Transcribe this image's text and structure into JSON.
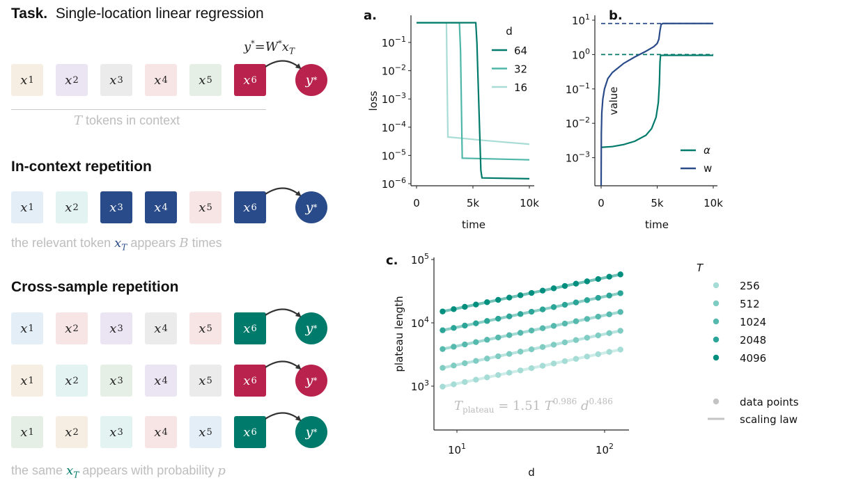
{
  "diagram": {
    "task": {
      "label": "Task.",
      "title": "Single-location linear regression",
      "formula": {
        "y": "y",
        "star": "*",
        "eq": "=",
        "W": "W",
        "x": "x",
        "sub": "T"
      }
    },
    "context_caption": {
      "sym": "T",
      "text": "tokens in context"
    },
    "in_context": {
      "title": "In-context repetition",
      "caption": {
        "pre": "the relevant token",
        "sym": "x",
        "sub": "T",
        "mid": "appears",
        "sym2": "B",
        "post": "times"
      }
    },
    "cross_sample": {
      "title": "Cross-sample repetition",
      "caption": {
        "pre": "the same",
        "sym": "x",
        "sub": "T",
        "post": "appears with probability",
        "sym2": "p"
      }
    },
    "target_label": {
      "sym": "y",
      "sup": "*"
    },
    "colors": {
      "red": "#b8224c",
      "blue": "#2a4b8a",
      "teal": "#007a6a"
    },
    "rows": [
      {
        "group": "task",
        "tokens": [
          {
            "sub": "1",
            "color": "#f6eee2"
          },
          {
            "sub": "2",
            "color": "#ebe5f3"
          },
          {
            "sub": "3",
            "color": "#ebebeb"
          },
          {
            "sub": "4",
            "color": "#f7e4e4"
          },
          {
            "sub": "5",
            "color": "#e6efe5"
          },
          {
            "sub": "6",
            "color": "#b8224c",
            "dark": true
          }
        ],
        "target_color": "#b8224c"
      },
      {
        "group": "in_context",
        "tokens": [
          {
            "sub": "1",
            "color": "#e4eef7"
          },
          {
            "sub": "2",
            "color": "#e3f3f1"
          },
          {
            "sub": "3",
            "color": "#2a4b8a",
            "dark": true
          },
          {
            "sub": "4",
            "color": "#2a4b8a",
            "dark": true
          },
          {
            "sub": "5",
            "color": "#f7e4e4"
          },
          {
            "sub": "6",
            "color": "#2a4b8a",
            "dark": true
          }
        ],
        "target_color": "#2a4b8a"
      },
      {
        "group": "cross_sample",
        "tokens": [
          {
            "sub": "1",
            "color": "#e4eef7"
          },
          {
            "sub": "2",
            "color": "#f7e4e4"
          },
          {
            "sub": "3",
            "color": "#ebe5f3"
          },
          {
            "sub": "4",
            "color": "#ebebeb"
          },
          {
            "sub": "5",
            "color": "#f7e4e4"
          },
          {
            "sub": "6",
            "color": "#007a6a",
            "dark": true
          }
        ],
        "target_color": "#007a6a"
      },
      {
        "group": "cross_sample",
        "tokens": [
          {
            "sub": "1",
            "color": "#f6eee2"
          },
          {
            "sub": "2",
            "color": "#e3f3f1"
          },
          {
            "sub": "3",
            "color": "#e6efe5"
          },
          {
            "sub": "4",
            "color": "#ebe5f3"
          },
          {
            "sub": "5",
            "color": "#ebebeb"
          },
          {
            "sub": "6",
            "color": "#b8224c",
            "dark": true
          }
        ],
        "target_color": "#b8224c"
      },
      {
        "group": "cross_sample",
        "tokens": [
          {
            "sub": "1",
            "color": "#e6efe5"
          },
          {
            "sub": "2",
            "color": "#f6eee2"
          },
          {
            "sub": "3",
            "color": "#e3f3f1"
          },
          {
            "sub": "4",
            "color": "#f7e4e4"
          },
          {
            "sub": "5",
            "color": "#e4eef7"
          },
          {
            "sub": "6",
            "color": "#007a6a",
            "dark": true
          }
        ],
        "target_color": "#007a6a"
      }
    ]
  },
  "chart_data": [
    {
      "panel": "a.",
      "type": "line",
      "xlabel": "time",
      "ylabel": "loss",
      "yscale": "log",
      "xlim": [
        -500,
        10450
      ],
      "ylim": [
        8.5e-07,
        0.91
      ],
      "xticks": [
        {
          "v": 0,
          "label": "0"
        },
        {
          "v": 5000,
          "label": "5k"
        },
        {
          "v": 10000,
          "label": "10k"
        }
      ],
      "yticks": [
        {
          "v": 0.1,
          "base": "10",
          "exp": "−1"
        },
        {
          "v": 0.01,
          "base": "10",
          "exp": "−2"
        },
        {
          "v": 0.001,
          "base": "10",
          "exp": "−3"
        },
        {
          "v": 0.0001,
          "base": "10",
          "exp": "−4"
        },
        {
          "v": 1e-05,
          "base": "10",
          "exp": "−5"
        },
        {
          "v": 1e-06,
          "base": "10",
          "exp": "−6"
        }
      ],
      "legend": {
        "title": "d",
        "placement": "upper-right"
      },
      "series": [
        {
          "name": "64",
          "color": "#007a6a",
          "points": [
            [
              0,
              0.5
            ],
            [
              5250,
              0.5
            ],
            [
              5350,
              0.1
            ],
            [
              5700,
              3e-06
            ],
            [
              5800,
              1.6e-06
            ],
            [
              10000,
              1.5e-06
            ]
          ]
        },
        {
          "name": "32",
          "color": "#4db6a8",
          "points": [
            [
              0,
              0.5
            ],
            [
              3800,
              0.5
            ],
            [
              3900,
              0.05
            ],
            [
              4050,
              8e-06
            ],
            [
              10000,
              7e-06
            ]
          ]
        },
        {
          "name": "16",
          "color": "#a8dcd5",
          "points": [
            [
              0,
              0.5
            ],
            [
              2650,
              0.5
            ],
            [
              2700,
              0.01
            ],
            [
              2780,
              4.5e-05
            ],
            [
              6000,
              3.4e-05
            ],
            [
              10000,
              2.5e-05
            ]
          ]
        }
      ]
    },
    {
      "panel": "b.",
      "type": "line",
      "xlabel": "time",
      "ylabel": "value",
      "yscale": "log",
      "xlim": [
        -560,
        10400
      ],
      "ylim": [
        0.00015,
        14
      ],
      "xticks": [
        {
          "v": 0,
          "label": "0"
        },
        {
          "v": 5000,
          "label": "5k"
        },
        {
          "v": 10000,
          "label": "10k"
        }
      ],
      "yticks": [
        {
          "v": 10,
          "base": "10",
          "exp": "1"
        },
        {
          "v": 1,
          "base": "10",
          "exp": "0"
        },
        {
          "v": 0.1,
          "base": "10",
          "exp": "−1"
        },
        {
          "v": 0.01,
          "base": "10",
          "exp": "−2"
        },
        {
          "v": 0.001,
          "base": "10",
          "exp": "−3"
        }
      ],
      "legend": {
        "placement": "lower-right"
      },
      "series": [
        {
          "name": "α",
          "color": "#007a6a",
          "target": 1,
          "points": [
            [
              0,
              0.002
            ],
            [
              1000,
              0.0021
            ],
            [
              2000,
              0.0024
            ],
            [
              3000,
              0.003
            ],
            [
              4000,
              0.0045
            ],
            [
              4500,
              0.007
            ],
            [
              4900,
              0.015
            ],
            [
              5100,
              0.04
            ],
            [
              5200,
              0.15
            ],
            [
              5250,
              0.6
            ],
            [
              5300,
              0.95
            ],
            [
              10000,
              0.95
            ]
          ]
        },
        {
          "name": "w",
          "color": "#2a4b8a",
          "target": 8,
          "points": [
            [
              0,
              0.00015
            ],
            [
              20,
              0.005
            ],
            [
              60,
              0.02
            ],
            [
              150,
              0.05
            ],
            [
              300,
              0.1
            ],
            [
              600,
              0.2
            ],
            [
              1000,
              0.3
            ],
            [
              2000,
              0.55
            ],
            [
              3000,
              0.85
            ],
            [
              4000,
              1.25
            ],
            [
              4700,
              1.7
            ],
            [
              5000,
              2.1
            ],
            [
              5150,
              2.8
            ],
            [
              5250,
              5
            ],
            [
              5350,
              7.5
            ],
            [
              5500,
              8
            ],
            [
              10000,
              8
            ]
          ]
        }
      ]
    },
    {
      "panel": "c.",
      "type": "scatter",
      "xlabel": "d",
      "ylabel": "plateau length",
      "xscale": "log",
      "yscale": "log",
      "xlim": [
        6.98,
        146
      ],
      "ylim": [
        204,
        100000
      ],
      "xticks": [
        {
          "v": 10,
          "base": "10",
          "exp": "1"
        },
        {
          "v": 100,
          "base": "10",
          "exp": "2"
        }
      ],
      "yticks": [
        {
          "v": 1000,
          "base": "10",
          "exp": "3"
        },
        {
          "v": 10000,
          "base": "10",
          "exp": "4"
        },
        {
          "v": 100000,
          "base": "10",
          "exp": "5"
        }
      ],
      "legend": {
        "title": "T",
        "placement": "outside-right",
        "data_points_label": "data points",
        "scaling_law_label": "scaling law"
      },
      "fit": {
        "lhs": "T",
        "lhs_sub": "plateau",
        "eq": "=",
        "coef": 1.51,
        "coef_label": "1.51",
        "T_sym": "T",
        "T_exp": 0.986,
        "T_exp_label": "0.986",
        "d_sym": "d",
        "d_exp": 0.486,
        "d_exp_label": "0.486"
      },
      "x": [
        8,
        9.51,
        11.31,
        13.45,
        16,
        19.03,
        22.63,
        26.91,
        32,
        38.05,
        45.25,
        53.82,
        64,
        76.11,
        90.51,
        107.6,
        128
      ],
      "series": [
        {
          "name": "256",
          "T": 256,
          "color": "#a6dcd6",
          "values": [
            983,
            1069,
            1163,
            1265,
            1376,
            1497,
            1629,
            1772,
            1928,
            2097,
            2282,
            2482,
            2700,
            2938,
            3196,
            3477,
            3782
          ]
        },
        {
          "name": "512",
          "T": 512,
          "color": "#7fccc3",
          "values": [
            1946,
            2117,
            2303,
            2506,
            2726,
            2966,
            3226,
            3510,
            3818,
            4154,
            4519,
            4917,
            5349,
            5819,
            6331,
            6887,
            7493
          ]
        },
        {
          "name": "1024",
          "T": 1024,
          "color": "#55b9ad",
          "values": [
            3854,
            4193,
            4562,
            4963,
            5399,
            5874,
            6390,
            6952,
            7563,
            8228,
            8951,
            9738,
            10594,
            11525,
            12538,
            13640,
            14839
          ]
        },
        {
          "name": "2048",
          "T": 2048,
          "color": "#2aa597",
          "values": [
            7634,
            8305,
            9035,
            9830,
            10694,
            11634,
            12657,
            13770,
            14980,
            16297,
            17730,
            19288,
            20984,
            22828,
            24835,
            27018,
            29393
          ]
        },
        {
          "name": "4096",
          "T": 4096,
          "color": "#008f7e",
          "values": [
            15122,
            16451,
            17898,
            19471,
            21183,
            23045,
            25071,
            27275,
            29672,
            32281,
            35119,
            38206,
            41564,
            45218,
            49193,
            53517,
            58222
          ]
        }
      ]
    }
  ]
}
